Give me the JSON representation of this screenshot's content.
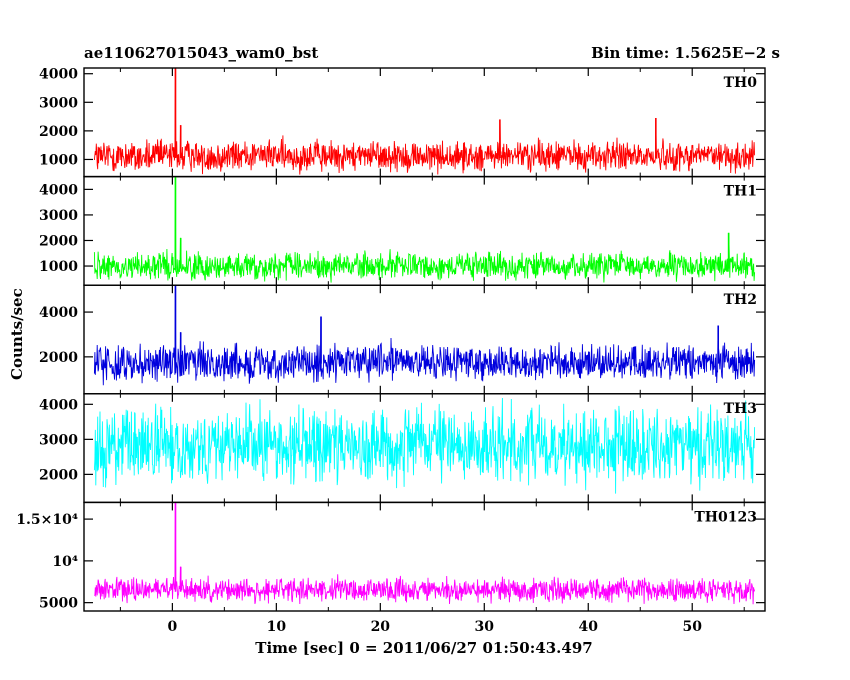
{
  "chart_data": {
    "type": "line",
    "title_left": "ae110627015043_wam0_bst",
    "title_right": "Bin time: 1.5625E−2 s",
    "xlabel": "Time [sec] 0 = 2011/06/27 01:50:43.497",
    "ylabel": "Counts/sec",
    "xlim": [
      -8.5,
      57
    ],
    "x_ticks": [
      0,
      10,
      20,
      30,
      40,
      50
    ],
    "x_ticklabels": [
      "0",
      "10",
      "20",
      "30",
      "40",
      "50"
    ],
    "data_x_range": [
      -7.5,
      56
    ],
    "bin_time": 0.015625,
    "grid": false,
    "panels": [
      {
        "name": "TH0",
        "color": "#ff0000",
        "ylim": [
          400,
          4200
        ],
        "yticks": [
          1000,
          2000,
          3000,
          4000
        ],
        "yticklabels": [
          "1000",
          "2000",
          "3000",
          "4000"
        ],
        "baseline_mean": 1050,
        "noise_low": 450,
        "noise_high": 1900,
        "spikes": [
          {
            "x": 0.3,
            "y": 4200
          },
          {
            "x": 0.8,
            "y": 2200
          },
          {
            "x": 31.5,
            "y": 2400
          },
          {
            "x": 46.5,
            "y": 2450
          }
        ]
      },
      {
        "name": "TH1",
        "color": "#00ff00",
        "ylim": [
          250,
          4500
        ],
        "yticks": [
          1000,
          2000,
          3000,
          4000
        ],
        "yticklabels": [
          "1000",
          "2000",
          "3000",
          "4000"
        ],
        "baseline_mean": 900,
        "noise_low": 350,
        "noise_high": 1800,
        "spikes": [
          {
            "x": 0.3,
            "y": 4500
          },
          {
            "x": 0.8,
            "y": 2100
          },
          {
            "x": 53.5,
            "y": 2300
          }
        ]
      },
      {
        "name": "TH2",
        "color": "#0000dd",
        "ylim": [
          350,
          5200
        ],
        "yticks": [
          2000,
          4000
        ],
        "yticklabels": [
          "2000",
          "4000"
        ],
        "baseline_mean": 1700,
        "noise_low": 700,
        "noise_high": 2900,
        "spikes": [
          {
            "x": 0.3,
            "y": 5200
          },
          {
            "x": 0.8,
            "y": 3100
          },
          {
            "x": 14.3,
            "y": 3800
          },
          {
            "x": 52.5,
            "y": 3400
          }
        ]
      },
      {
        "name": "TH3",
        "color": "#00ffff",
        "ylim": [
          1200,
          4300
        ],
        "yticks": [
          2000,
          3000,
          4000
        ],
        "yticklabels": [
          "2000",
          "3000",
          "4000"
        ],
        "baseline_mean": 2800,
        "noise_low": 1400,
        "noise_high": 4300,
        "spikes": []
      },
      {
        "name": "TH0123",
        "color": "#ff00ff",
        "ylim": [
          4000,
          17000
        ],
        "yticks": [
          5000,
          10000,
          15000
        ],
        "yticklabels": [
          "5000",
          "10⁴",
          "1.5×10⁴"
        ],
        "baseline_mean": 6300,
        "noise_low": 4800,
        "noise_high": 8700,
        "spikes": [
          {
            "x": 0.3,
            "y": 17000
          },
          {
            "x": 0.8,
            "y": 9300
          }
        ]
      }
    ]
  }
}
